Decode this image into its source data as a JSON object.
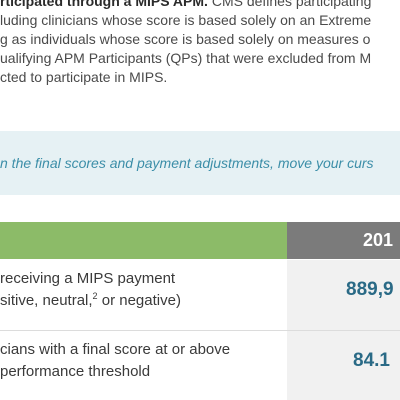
{
  "intro": {
    "line1_bold": "rticipated through a MIPS APM.",
    "line1_rest": " CMS defines participating",
    "line2": "luding clinicians whose score is based solely on an Extreme",
    "line3": "g as individuals whose score is based solely on measures o",
    "line4": "ualifying APM Participants (QPs) that were excluded from M",
    "line5": "cted to participate in MIPS."
  },
  "callout": {
    "text": "n the final scores and payment adjustments, move your curs"
  },
  "table": {
    "header_year": "201",
    "rows": [
      {
        "label_line1": "receiving a MIPS payment",
        "label_line2a": "sitive, neutral,",
        "label_sup": "2",
        "label_line2b": " or negative)",
        "value": "889,9"
      },
      {
        "label_line1": "cians with a final score at or above",
        "label_line2": " performance threshold",
        "value": "84.1"
      }
    ]
  },
  "colors": {
    "header_green": "#8cbb68",
    "header_gray": "#7b7b7b",
    "callout_bg": "#e6f1f4",
    "callout_text": "#3c8ea8",
    "value_text": "#2a6a86"
  }
}
